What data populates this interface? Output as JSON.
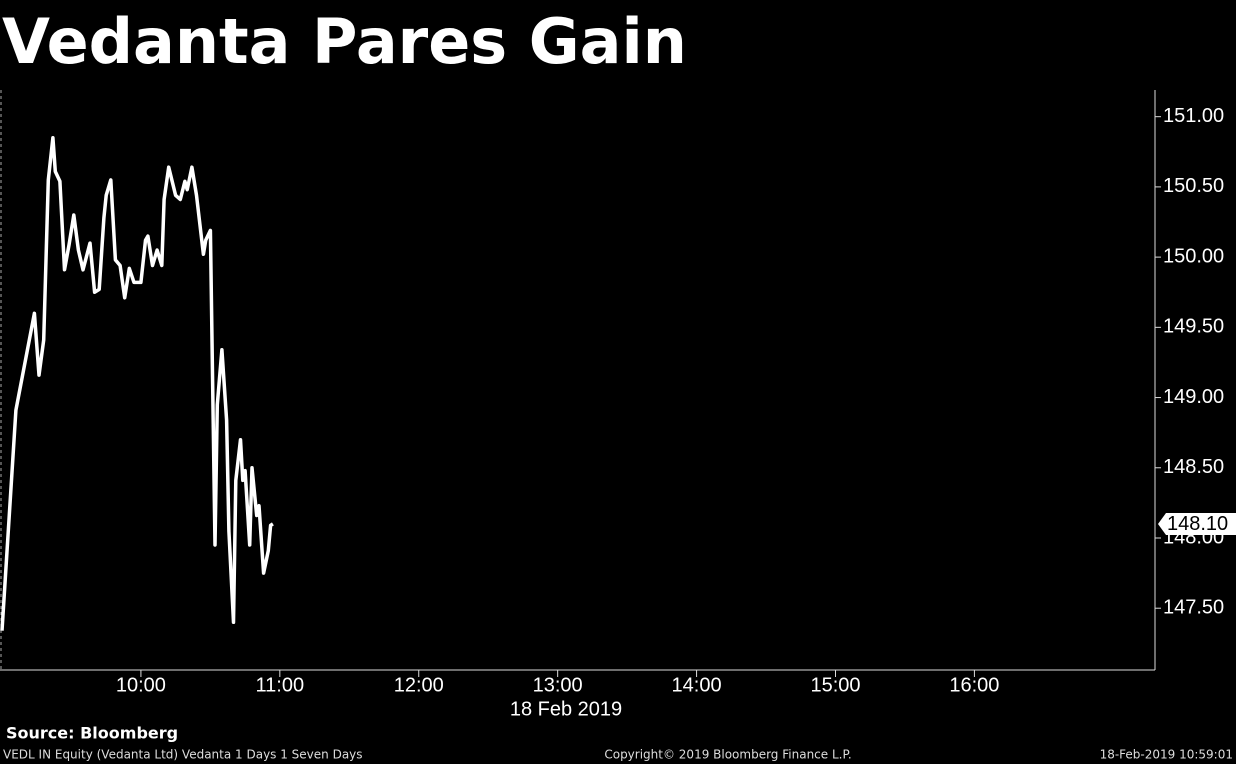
{
  "chart_data": {
    "type": "line",
    "title": "Vedanta Pares Gain",
    "x_label": "18 Feb 2019",
    "x": [
      "09:00",
      "09:06",
      "09:14",
      "09:16",
      "09:18",
      "09:20",
      "09:22",
      "09:23",
      "09:25",
      "09:27",
      "09:29",
      "09:31",
      "09:33",
      "09:35",
      "09:38",
      "09:40",
      "09:42",
      "09:44",
      "09:45",
      "09:47",
      "09:49",
      "09:51",
      "09:53",
      "09:55",
      "09:57",
      "10:00",
      "10:02",
      "10:03",
      "10:05",
      "10:07",
      "10:09",
      "10:10",
      "10:12",
      "10:15",
      "10:17",
      "10:19",
      "10:20",
      "10:22",
      "10:24",
      "10:27",
      "10:28",
      "10:30",
      "10:32",
      "10:33",
      "10:35",
      "10:37",
      "10:38",
      "10:40",
      "10:41",
      "10:43",
      "10:44",
      "10:45",
      "10:47",
      "10:48",
      "10:50",
      "10:51",
      "10:53",
      "10:55",
      "10:56",
      "10:57"
    ],
    "series": [
      {
        "name": "VEDL IN Equity",
        "color": "#ffffff",
        "values": [
          147.34,
          148.91,
          149.6,
          149.16,
          149.41,
          150.55,
          150.85,
          150.61,
          150.54,
          149.91,
          150.09,
          150.3,
          150.05,
          149.91,
          150.1,
          149.75,
          149.77,
          150.28,
          150.44,
          150.55,
          149.98,
          149.94,
          149.71,
          149.92,
          149.82,
          149.82,
          150.12,
          150.15,
          149.94,
          150.05,
          149.94,
          150.41,
          150.64,
          150.44,
          150.41,
          150.54,
          150.48,
          150.64,
          150.44,
          150.02,
          150.12,
          150.19,
          147.95,
          148.95,
          149.34,
          148.84,
          148.05,
          147.4,
          148.41,
          148.7,
          148.41,
          148.48,
          147.95,
          148.5,
          148.16,
          148.23,
          147.75,
          147.91,
          148.09,
          148.1
        ]
      }
    ],
    "last_value_label": "148.10",
    "xlim": [
      "09:00",
      "17:18"
    ],
    "xticks": [
      "10:00",
      "11:00",
      "12:00",
      "13:00",
      "14:00",
      "15:00",
      "16:00"
    ],
    "ylim": [
      147.06,
      151.19
    ],
    "yticks": [
      {
        "value": 147.5,
        "label": "147.50"
      },
      {
        "value": 148,
        "label": "148.00"
      },
      {
        "value": 148.5,
        "label": "148.50"
      },
      {
        "value": 149,
        "label": "149.00"
      },
      {
        "value": 149.5,
        "label": "149.50"
      },
      {
        "value": 150,
        "label": "150.00"
      },
      {
        "value": 150.5,
        "label": "150.50"
      },
      {
        "value": 151,
        "label": "151.00"
      }
    ],
    "grid": false
  },
  "source": "Source: Bloomberg",
  "footer": {
    "left": "VEDL IN Equity (Vedanta Ltd) Vedanta 1 Days 1 Seven Days",
    "center": "Copyright© 2019 Bloomberg Finance L.P.",
    "right": "18-Feb-2019 10:59:01"
  }
}
